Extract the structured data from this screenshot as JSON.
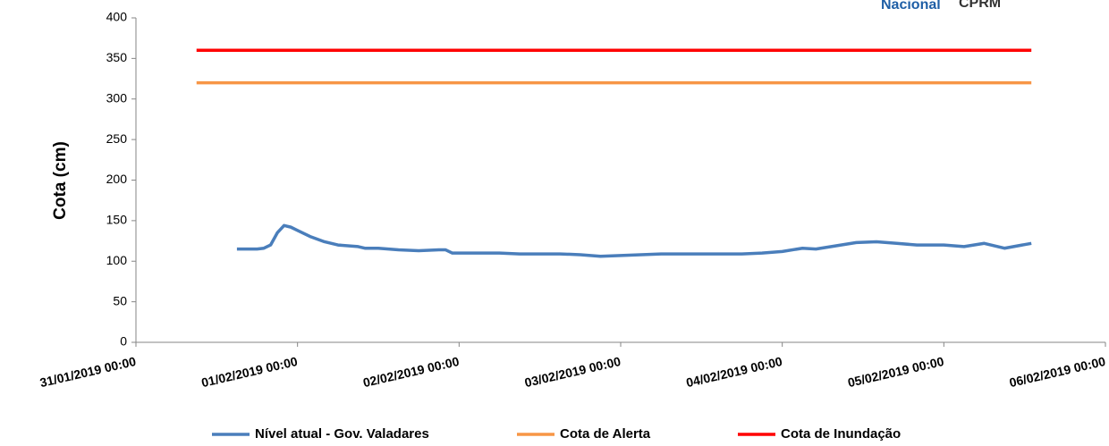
{
  "logos": [
    "Nacional",
    "CPRM"
  ],
  "chart_data": {
    "type": "line",
    "ylabel": "Cota (cm)",
    "ylim": [
      0,
      400
    ],
    "yticks": [
      0,
      50,
      100,
      150,
      200,
      250,
      300,
      350,
      400
    ],
    "xlim": [
      "2019-01-31 00:00",
      "2019-02-06 00:00"
    ],
    "xticks": [
      {
        "value": "2019-01-31 00:00",
        "label": "31/01/2019 00:00"
      },
      {
        "value": "2019-02-01 00:00",
        "label": "01/02/2019 00:00"
      },
      {
        "value": "2019-02-02 00:00",
        "label": "02/02/2019 00:00"
      },
      {
        "value": "2019-02-03 00:00",
        "label": "03/02/2019 00:00"
      },
      {
        "value": "2019-02-04 00:00",
        "label": "04/02/2019 00:00"
      },
      {
        "value": "2019-02-05 00:00",
        "label": "05/02/2019 00:00"
      },
      {
        "value": "2019-02-06 00:00",
        "label": "06/02/2019 00:00"
      }
    ],
    "series": [
      {
        "name": "Nível atual - Gov. Valadares",
        "color": "#4a7ebb",
        "x": [
          "2019-01-31 15:00",
          "2019-01-31 18:00",
          "2019-01-31 19:00",
          "2019-01-31 20:00",
          "2019-01-31 21:00",
          "2019-01-31 22:00",
          "2019-01-31 23:00",
          "2019-02-01 00:00",
          "2019-02-01 02:00",
          "2019-02-01 04:00",
          "2019-02-01 06:00",
          "2019-02-01 09:00",
          "2019-02-01 10:00",
          "2019-02-01 12:00",
          "2019-02-01 15:00",
          "2019-02-01 18:00",
          "2019-02-01 21:00",
          "2019-02-01 22:00",
          "2019-02-01 23:00",
          "2019-02-02 03:00",
          "2019-02-02 06:00",
          "2019-02-02 09:00",
          "2019-02-02 15:00",
          "2019-02-02 18:00",
          "2019-02-02 21:00",
          "2019-02-03 00:00",
          "2019-02-03 03:00",
          "2019-02-03 06:00",
          "2019-02-03 18:00",
          "2019-02-03 21:00",
          "2019-02-04 00:00",
          "2019-02-04 03:00",
          "2019-02-04 05:00",
          "2019-02-04 08:00",
          "2019-02-04 11:00",
          "2019-02-04 14:00",
          "2019-02-04 17:00",
          "2019-02-04 20:00",
          "2019-02-05 00:00",
          "2019-02-05 03:00",
          "2019-02-05 06:00",
          "2019-02-05 09:00",
          "2019-02-05 13:00"
        ],
        "values": [
          115,
          115,
          116,
          120,
          135,
          144,
          142,
          138,
          130,
          124,
          120,
          118,
          116,
          116,
          114,
          113,
          114,
          114,
          110,
          110,
          110,
          109,
          109,
          108,
          106,
          107,
          108,
          109,
          109,
          110,
          112,
          116,
          115,
          119,
          123,
          124,
          122,
          120,
          120,
          118,
          122,
          116,
          122
        ]
      },
      {
        "name": "Cota de Alerta",
        "color": "#f79646",
        "x": [
          "2019-01-31 09:00",
          "2019-02-05 13:00"
        ],
        "values": [
          320,
          320
        ]
      },
      {
        "name": "Cota de Inundação",
        "color": "#ff0000",
        "x": [
          "2019-01-31 09:00",
          "2019-02-05 13:00"
        ],
        "values": [
          360,
          360
        ]
      }
    ],
    "legend": "bottom"
  }
}
